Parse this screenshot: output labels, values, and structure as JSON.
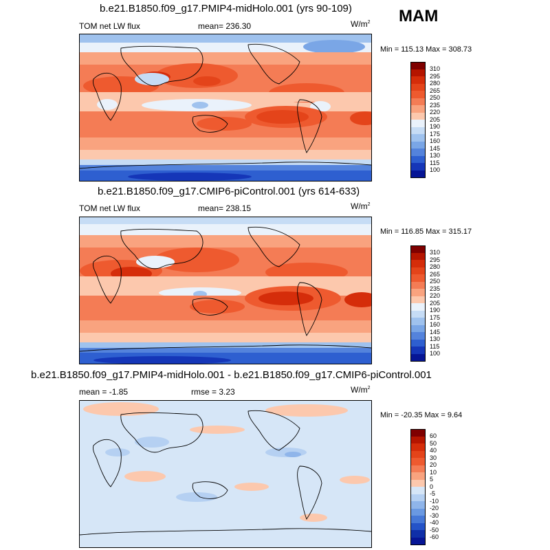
{
  "season": "MAM",
  "units_base": "W/m",
  "units_exp": "2",
  "chart_data": [
    {
      "type": "heatmap",
      "title": "b.e21.B1850.f09_g17.PMIP4-midHolo.001 (yrs 90-109)",
      "left_label": "TOM net LW flux",
      "center_label": "mean= 236.30",
      "min_max": "Min = 115.13 Max = 308.73",
      "levels": [
        "310",
        "295",
        "280",
        "265",
        "250",
        "235",
        "220",
        "205",
        "190",
        "175",
        "160",
        "145",
        "130",
        "115",
        "100"
      ],
      "colors": [
        "#7f0000",
        "#b51500",
        "#d52d0a",
        "#e4441a",
        "#ee5a2f",
        "#f47c55",
        "#f9a37f",
        "#fcc8ad",
        "#eaf2fb",
        "#c6dcf5",
        "#9fc2ee",
        "#7aa6e6",
        "#5483dc",
        "#2e5fd0",
        "#1536b8",
        "#061595"
      ]
    },
    {
      "type": "heatmap",
      "title": "b.e21.B1850.f09_g17.CMIP6-piControl.001 (yrs 614-633)",
      "left_label": "TOM net LW flux",
      "center_label": "mean= 238.15",
      "min_max": "Min = 116.85 Max = 315.17",
      "levels": [
        "310",
        "295",
        "280",
        "265",
        "250",
        "235",
        "220",
        "205",
        "190",
        "175",
        "160",
        "145",
        "130",
        "115",
        "100"
      ],
      "colors": [
        "#7f0000",
        "#b51500",
        "#d52d0a",
        "#e4441a",
        "#ee5a2f",
        "#f47c55",
        "#f9a37f",
        "#fcc8ad",
        "#eaf2fb",
        "#c6dcf5",
        "#9fc2ee",
        "#7aa6e6",
        "#5483dc",
        "#2e5fd0",
        "#1536b8",
        "#061595"
      ]
    },
    {
      "type": "heatmap",
      "title": "b.e21.B1850.f09_g17.PMIP4-midHolo.001 - b.e21.B1850.f09_g17.CMIP6-piControl.001",
      "left_label": "mean =  -1.85",
      "center_label": "rmse =   3.23",
      "min_max": "Min = -20.35 Max =   9.64",
      "levels": [
        "60",
        "50",
        "40",
        "30",
        "20",
        "10",
        "5",
        "0",
        "-5",
        "-10",
        "-20",
        "-30",
        "-40",
        "-50",
        "-60"
      ],
      "colors": [
        "#7f0000",
        "#b51500",
        "#d52d0a",
        "#e4441a",
        "#ee5a2f",
        "#f47c55",
        "#f9a37f",
        "#fcc8ad",
        "#d6e6f7",
        "#b5d0f2",
        "#8fb5ea",
        "#6a99e2",
        "#4678d7",
        "#2453c8",
        "#0f2fa8",
        "#061595"
      ]
    }
  ]
}
